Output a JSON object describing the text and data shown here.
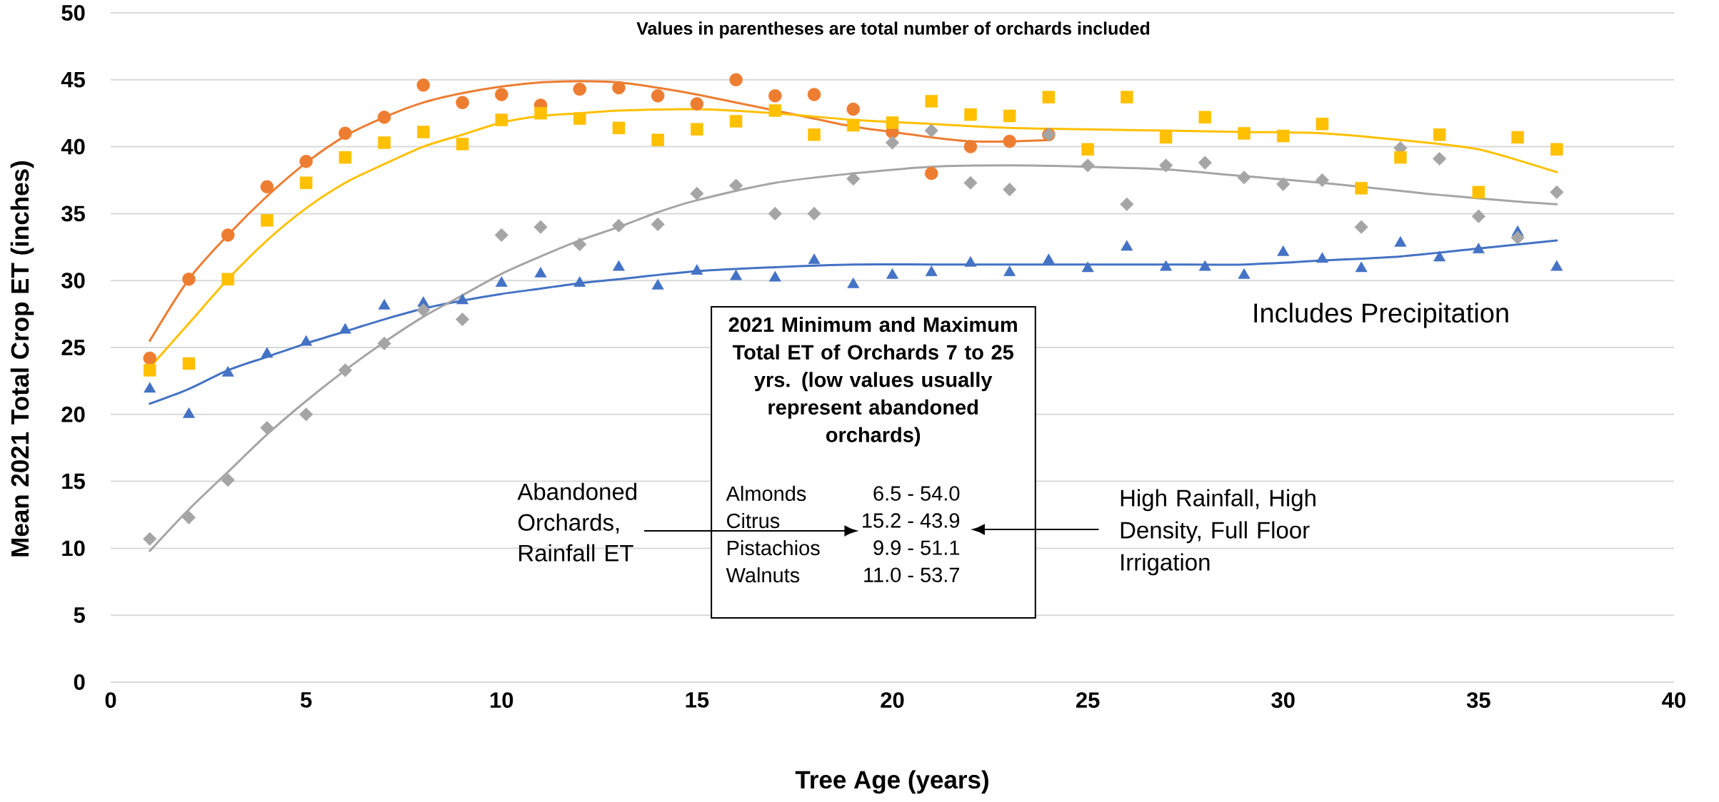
{
  "chart_data": {
    "type": "scatter",
    "subtitle": "Values in parentheses are total number of orchards included",
    "xlabel": "Tree Age (years)",
    "ylabel": "Mean 2021 Total Crop ET (inches)",
    "x": [
      1,
      2,
      3,
      4,
      5,
      6,
      7,
      8,
      9,
      10,
      11,
      12,
      13,
      14,
      15,
      16,
      17,
      18,
      19,
      20,
      21,
      22,
      23,
      24,
      25,
      26,
      27,
      28,
      29,
      30,
      31,
      32,
      33,
      34,
      35,
      36,
      37
    ],
    "series": [
      {
        "color": "#4472c4",
        "marker": "triangle",
        "values": [
          21.9,
          20.0,
          23.1,
          24.5,
          25.4,
          26.3,
          28.1,
          28.3,
          28.5,
          29.8,
          30.5,
          29.8,
          31.0,
          29.6,
          30.7,
          30.3,
          30.2,
          31.5,
          29.7,
          30.4,
          30.6,
          31.3,
          30.6,
          31.5,
          30.9,
          32.5,
          31.0,
          31.0,
          30.4,
          32.1,
          31.6,
          30.9,
          32.8,
          31.7,
          32.3,
          33.6,
          31.0
        ]
      },
      {
        "color": "#ed7d31",
        "marker": "circle",
        "x": [
          1,
          2,
          3,
          4,
          5,
          6,
          7,
          8,
          9,
          10,
          11,
          12,
          13,
          14,
          15,
          16,
          17,
          18,
          19,
          20,
          21,
          22,
          23,
          24
        ],
        "values": [
          24.2,
          30.1,
          33.4,
          37.0,
          38.9,
          41.0,
          42.2,
          44.6,
          43.3,
          43.9,
          43.1,
          44.3,
          44.4,
          43.8,
          43.2,
          45.0,
          43.8,
          43.9,
          42.8,
          41.1,
          38.0,
          40.0,
          40.4,
          40.9
        ]
      },
      {
        "color": "#a5a5a5",
        "marker": "diamond",
        "values": [
          10.7,
          12.3,
          15.1,
          19.0,
          20.0,
          23.3,
          25.3,
          27.8,
          27.1,
          33.4,
          34.0,
          32.7,
          34.1,
          34.2,
          36.5,
          37.1,
          35.0,
          35.0,
          37.6,
          40.3,
          41.2,
          37.3,
          36.8,
          40.9,
          38.6,
          35.7,
          38.6,
          38.8,
          37.7,
          37.2,
          37.5,
          34.0,
          39.9,
          39.1,
          34.8,
          33.2,
          36.6
        ]
      },
      {
        "color": "#ffc000",
        "marker": "square",
        "values": [
          23.3,
          23.8,
          30.1,
          34.5,
          37.3,
          39.2,
          40.3,
          41.1,
          40.2,
          42.0,
          42.5,
          42.1,
          41.4,
          40.5,
          41.3,
          41.9,
          42.7,
          40.9,
          41.6,
          41.8,
          43.4,
          42.4,
          42.3,
          43.7,
          39.8,
          43.7,
          40.7,
          42.2,
          41.0,
          40.8,
          41.7,
          36.9,
          39.2,
          40.9,
          36.6,
          40.7,
          39.8
        ]
      },
      {
        "type": "line",
        "color": "#4472c4",
        "x": [
          1,
          2,
          3,
          4,
          5,
          6,
          7,
          8,
          9,
          10,
          11,
          12,
          13,
          15,
          17,
          19,
          21,
          23,
          25,
          27,
          29,
          31,
          33,
          35,
          37
        ],
        "values": [
          20.8,
          21.9,
          23.3,
          24.3,
          25.3,
          26.2,
          27.1,
          27.9,
          28.5,
          29.0,
          29.4,
          29.8,
          30.1,
          30.7,
          31.0,
          31.2,
          31.2,
          31.2,
          31.2,
          31.2,
          31.2,
          31.5,
          31.8,
          32.4,
          33.0
        ]
      },
      {
        "type": "line",
        "color": "#ed7d31",
        "x": [
          1,
          2,
          3,
          4,
          5,
          6,
          7,
          8,
          9,
          10,
          11,
          12,
          13,
          14,
          15,
          16,
          17,
          18,
          19,
          20,
          21,
          22,
          23,
          24
        ],
        "values": [
          25.5,
          30.1,
          33.4,
          36.3,
          38.8,
          40.8,
          42.2,
          43.3,
          44.0,
          44.5,
          44.8,
          44.9,
          44.8,
          44.4,
          43.9,
          43.3,
          42.7,
          42.1,
          41.5,
          41.1,
          40.7,
          40.4,
          40.4,
          40.5
        ]
      },
      {
        "type": "line",
        "color": "#a5a5a5",
        "x": [
          1,
          2,
          3,
          4,
          5,
          6,
          7,
          8,
          9,
          10,
          11,
          12,
          13,
          14,
          15,
          17,
          19,
          21,
          23,
          25,
          27,
          29,
          31,
          33,
          34,
          36,
          37
        ],
        "values": [
          9.8,
          12.9,
          15.7,
          18.5,
          21.0,
          23.3,
          25.4,
          27.3,
          28.9,
          30.5,
          31.8,
          33.0,
          34.0,
          35.1,
          36.0,
          37.3,
          38.0,
          38.5,
          38.6,
          38.5,
          38.3,
          37.8,
          37.3,
          36.7,
          36.4,
          35.9,
          35.7
        ]
      },
      {
        "type": "line",
        "color": "#ffc000",
        "x": [
          1,
          2,
          3,
          4,
          5,
          6,
          7,
          8,
          9,
          10,
          11,
          12,
          13,
          15,
          17,
          19,
          21,
          23,
          25,
          27,
          29,
          31,
          33,
          34,
          35,
          36,
          37
        ],
        "values": [
          23.5,
          26.8,
          30.1,
          33.0,
          35.4,
          37.3,
          38.7,
          40.0,
          40.9,
          41.8,
          42.3,
          42.5,
          42.7,
          42.8,
          42.5,
          42.0,
          41.7,
          41.4,
          41.3,
          41.2,
          41.1,
          41.0,
          40.5,
          40.2,
          39.8,
          39.0,
          38.1
        ]
      }
    ],
    "xlim": [
      0,
      40
    ],
    "xticks": [
      0,
      5,
      10,
      15,
      20,
      25,
      30,
      35,
      40
    ],
    "ylim": [
      0,
      50
    ],
    "yticks": [
      0,
      5,
      10,
      15,
      20,
      25,
      30,
      35,
      40,
      45,
      50
    ],
    "grid": "y",
    "annotations": [
      "Includes Precipitation",
      "Abandoned Orchards, Rainfall ET",
      "High Rainfall, High Density, Full Floor Irrigation",
      "2021 Minimum and Maximum Total ET of Orchards 7 to 25 yrs. (low values usually represent abandoned orchards)",
      "Almonds",
      "6.5 - 54.0",
      "Citrus",
      "15.2 - 43.9",
      "Pistachios",
      "9.9 - 51.1",
      "Walnuts",
      "11.0 - 53.7"
    ]
  }
}
